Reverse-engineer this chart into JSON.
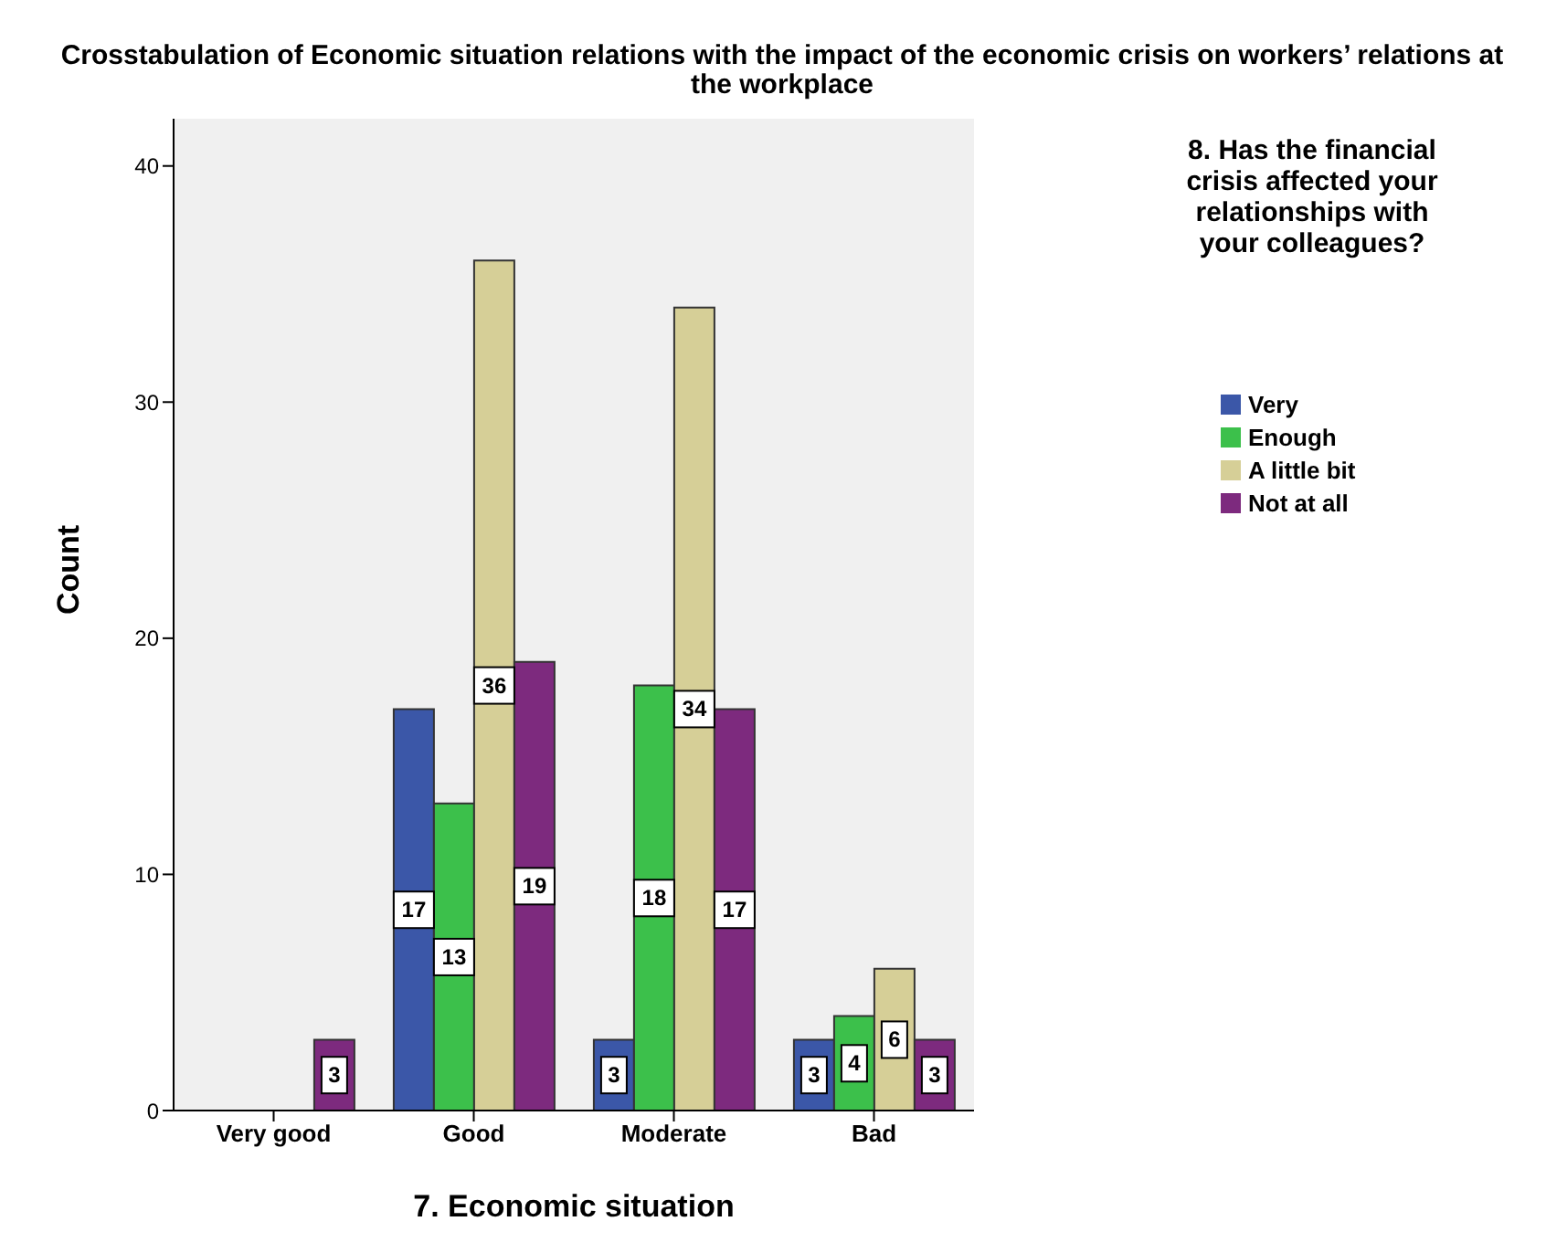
{
  "chart_data": {
    "type": "bar",
    "title": "Crosstabulation of Economic situation relations with the impact of the economic crisis on workers’ relations at the workplace",
    "xlabel": "7. Economic situation",
    "ylabel": "Count",
    "legend_title": "8. Has the financial crisis affected your relationships with your colleagues?",
    "categories": [
      "Very good",
      "Good",
      "Moderate",
      "Bad"
    ],
    "series": [
      {
        "name": "Very",
        "color": "#3b57a8",
        "values": [
          null,
          17,
          3,
          3
        ]
      },
      {
        "name": "Enough",
        "color": "#3cc04b",
        "values": [
          null,
          13,
          18,
          4
        ]
      },
      {
        "name": "A little bit",
        "color": "#d6cf97",
        "values": [
          null,
          36,
          34,
          6
        ]
      },
      {
        "name": "Not at all",
        "color": "#7d2a7e",
        "values": [
          3,
          19,
          17,
          3
        ]
      }
    ],
    "ylim": [
      0,
      42
    ],
    "yticks": [
      0,
      10,
      20,
      30,
      40
    ],
    "legend": "right",
    "data_labels": true
  }
}
